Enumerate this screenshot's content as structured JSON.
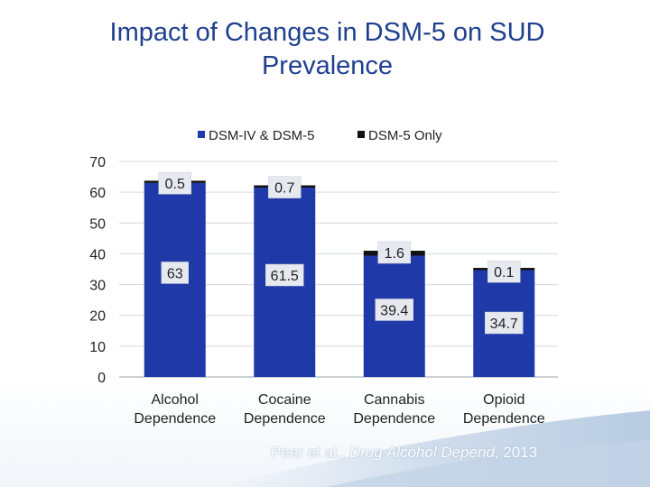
{
  "slide": {
    "title_line1": "Impact of Changes in DSM-5 on SUD",
    "title_line2": "Prevalence",
    "citation_authors": "Peer et al., ",
    "citation_journal": "Drug Alcohol Depend",
    "citation_year": ", 2013"
  },
  "colors": {
    "title": "#1f3f8f",
    "series_main": "#1f3aa8",
    "series_only": "#111111",
    "label_box": "#e6e9ef"
  },
  "chart_data": {
    "type": "bar",
    "stacked": true,
    "title": "",
    "xlabel": "",
    "ylabel": "",
    "ylim": [
      0,
      70
    ],
    "yticks": [
      "0",
      "10",
      "20",
      "30",
      "40",
      "50",
      "60",
      "70"
    ],
    "grid": true,
    "legend_position": "top",
    "categories": [
      [
        "Alcohol",
        "Dependence"
      ],
      [
        "Cocaine",
        "Dependence"
      ],
      [
        "Cannabis",
        "Dependence"
      ],
      [
        "Opioid",
        "Dependence"
      ]
    ],
    "series": [
      {
        "name": "DSM-IV & DSM-5",
        "values": [
          63,
          61.5,
          39.4,
          34.7
        ],
        "labels": [
          "63",
          "61.5",
          "39.4",
          "34.7"
        ],
        "color": "#1f3aa8"
      },
      {
        "name": "DSM-5 Only",
        "values": [
          0.5,
          0.7,
          1.6,
          0.1
        ],
        "labels": [
          "0.5",
          "0.7",
          "1.6",
          "0.1"
        ],
        "color": "#111111"
      }
    ]
  }
}
